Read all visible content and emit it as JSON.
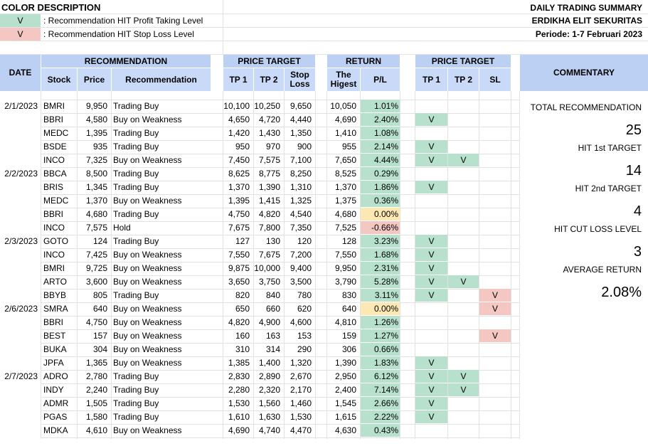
{
  "color_description": {
    "title": "COLOR DESCRIPTION",
    "items": [
      {
        "symbol": "V",
        "text": ": Recommendation HIT Profit Taking Level",
        "color": "#b7e1cd"
      },
      {
        "symbol": "V",
        "text": ": Recommendation HIT Stop Loss Level",
        "color": "#f4c7c3"
      }
    ]
  },
  "header": {
    "title": "DAILY TRADING SUMMARY",
    "company": "ERDIKHA ELIT SEKURITAS",
    "period": "Periode: 1-7  Februari 2023"
  },
  "columns": {
    "date": "DATE",
    "recommendation_group": "RECOMMENDATION",
    "stock": "Stock",
    "price": "Price",
    "recommendation": "Recommendation",
    "price_target_group": "PRICE TARGET",
    "tp1": "TP 1",
    "tp2": "TP 2",
    "stop_loss": "Stop Loss",
    "return_group": "RETURN",
    "highest": "The Higest",
    "pl": "P/L",
    "hit_group": "PRICE TARGET",
    "hit_tp1": "TP 1",
    "hit_tp2": "TP 2",
    "hit_sl": "SL",
    "commentary": "COMMENTARY"
  },
  "rows": [
    {
      "date": "2/1/2023",
      "stock": "BMRI",
      "price": "9,950",
      "rec": "Trading Buy",
      "tp1": "10,100",
      "tp2": "10,250",
      "sl": "9,650",
      "high": "10,050",
      "pl": "1.01%",
      "pl_state": "green",
      "h1": "",
      "h2": "",
      "hs": ""
    },
    {
      "date": "",
      "stock": "BBRI",
      "price": "4,580",
      "rec": "Buy on Weakness",
      "tp1": "4,650",
      "tp2": "4,720",
      "sl": "4,440",
      "high": "4,690",
      "pl": "2.40%",
      "pl_state": "green",
      "h1": "V",
      "h2": "",
      "hs": ""
    },
    {
      "date": "",
      "stock": "MEDC",
      "price": "1,395",
      "rec": "Trading Buy",
      "tp1": "1,420",
      "tp2": "1,430",
      "sl": "1,350",
      "high": "1,410",
      "pl": "1.08%",
      "pl_state": "green",
      "h1": "",
      "h2": "",
      "hs": ""
    },
    {
      "date": "",
      "stock": "BSDE",
      "price": "935",
      "rec": "Trading Buy",
      "tp1": "950",
      "tp2": "970",
      "sl": "900",
      "high": "955",
      "pl": "2.14%",
      "pl_state": "green",
      "h1": "V",
      "h2": "",
      "hs": ""
    },
    {
      "date": "",
      "stock": "INCO",
      "price": "7,325",
      "rec": "Buy on Weakness",
      "tp1": "7,450",
      "tp2": "7,575",
      "sl": "7,100",
      "high": "7,650",
      "pl": "4.44%",
      "pl_state": "green",
      "h1": "V",
      "h2": "V",
      "hs": ""
    },
    {
      "date": "2/2/2023",
      "stock": "BBCA",
      "price": "8,500",
      "rec": "Trading Buy",
      "tp1": "8,625",
      "tp2": "8,775",
      "sl": "8,250",
      "high": "8,525",
      "pl": "0.29%",
      "pl_state": "green",
      "h1": "",
      "h2": "",
      "hs": ""
    },
    {
      "date": "",
      "stock": "BRIS",
      "price": "1,345",
      "rec": "Trading Buy",
      "tp1": "1,370",
      "tp2": "1,390",
      "sl": "1,310",
      "high": "1,370",
      "pl": "1.86%",
      "pl_state": "green",
      "h1": "V",
      "h2": "",
      "hs": ""
    },
    {
      "date": "",
      "stock": "MEDC",
      "price": "1,370",
      "rec": "Buy on Weakness",
      "tp1": "1,395",
      "tp2": "1,415",
      "sl": "1,325",
      "high": "1,375",
      "pl": "0.36%",
      "pl_state": "green",
      "h1": "",
      "h2": "",
      "hs": ""
    },
    {
      "date": "",
      "stock": "BBRI",
      "price": "4,680",
      "rec": "Trading Buy",
      "tp1": "4,750",
      "tp2": "4,820",
      "sl": "4,540",
      "high": "4,680",
      "pl": "0.00%",
      "pl_state": "yellow",
      "h1": "",
      "h2": "",
      "hs": ""
    },
    {
      "date": "",
      "stock": "INCO",
      "price": "7,575",
      "rec": "Hold",
      "tp1": "7,675",
      "tp2": "7,800",
      "sl": "7,350",
      "high": "7,525",
      "pl": "-0.66%",
      "pl_state": "pink",
      "h1": "",
      "h2": "",
      "hs": ""
    },
    {
      "date": "2/3/2023",
      "stock": "GOTO",
      "price": "124",
      "rec": "Trading Buy",
      "tp1": "127",
      "tp2": "130",
      "sl": "120",
      "high": "128",
      "pl": "3.23%",
      "pl_state": "green",
      "h1": "V",
      "h2": "",
      "hs": ""
    },
    {
      "date": "",
      "stock": "INCO",
      "price": "7,425",
      "rec": "Buy on Weakness",
      "tp1": "7,550",
      "tp2": "7,675",
      "sl": "7,200",
      "high": "7,550",
      "pl": "1.68%",
      "pl_state": "green",
      "h1": "V",
      "h2": "",
      "hs": ""
    },
    {
      "date": "",
      "stock": "BMRI",
      "price": "9,725",
      "rec": "Buy on Weakness",
      "tp1": "9,875",
      "tp2": "10,000",
      "sl": "9,400",
      "high": "9,950",
      "pl": "2.31%",
      "pl_state": "green",
      "h1": "V",
      "h2": "",
      "hs": ""
    },
    {
      "date": "",
      "stock": "ARTO",
      "price": "3,600",
      "rec": "Buy on Weakness",
      "tp1": "3,650",
      "tp2": "3,750",
      "sl": "3,500",
      "high": "3,790",
      "pl": "5.28%",
      "pl_state": "green",
      "h1": "V",
      "h2": "V",
      "hs": ""
    },
    {
      "date": "",
      "stock": "BBYB",
      "price": "805",
      "rec": "Trading Buy",
      "tp1": "820",
      "tp2": "840",
      "sl": "780",
      "high": "830",
      "pl": "3.11%",
      "pl_state": "green",
      "h1": "V",
      "h2": "",
      "hs": "V"
    },
    {
      "date": "2/6/2023",
      "stock": "SMRA",
      "price": "640",
      "rec": "Buy on Weakness",
      "tp1": "650",
      "tp2": "660",
      "sl": "620",
      "high": "640",
      "pl": "0.00%",
      "pl_state": "yellow",
      "h1": "",
      "h2": "",
      "hs": "V"
    },
    {
      "date": "",
      "stock": "BBRI",
      "price": "4,750",
      "rec": "Buy on Weakness",
      "tp1": "4,820",
      "tp2": "4,900",
      "sl": "4,600",
      "high": "4,810",
      "pl": "1.26%",
      "pl_state": "green",
      "h1": "",
      "h2": "",
      "hs": ""
    },
    {
      "date": "",
      "stock": "BEST",
      "price": "157",
      "rec": "Buy on Weakness",
      "tp1": "160",
      "tp2": "163",
      "sl": "153",
      "high": "159",
      "pl": "1.27%",
      "pl_state": "green",
      "h1": "",
      "h2": "",
      "hs": "V"
    },
    {
      "date": "",
      "stock": "BUKA",
      "price": "304",
      "rec": "Buy on Weakness",
      "tp1": "310",
      "tp2": "314",
      "sl": "290",
      "high": "306",
      "pl": "0.66%",
      "pl_state": "green",
      "h1": "",
      "h2": "",
      "hs": ""
    },
    {
      "date": "",
      "stock": "JPFA",
      "price": "1,365",
      "rec": "Buy on Weakness",
      "tp1": "1,385",
      "tp2": "1,400",
      "sl": "1,320",
      "high": "1,390",
      "pl": "1.83%",
      "pl_state": "green",
      "h1": "V",
      "h2": "",
      "hs": ""
    },
    {
      "date": "2/7/2023",
      "stock": "ADRO",
      "price": "2,780",
      "rec": "Trading Buy",
      "tp1": "2,830",
      "tp2": "2,890",
      "sl": "2,670",
      "high": "2,950",
      "pl": "6.12%",
      "pl_state": "green",
      "h1": "V",
      "h2": "V",
      "hs": ""
    },
    {
      "date": "",
      "stock": "INDY",
      "price": "2,240",
      "rec": "Trading Buy",
      "tp1": "2,280",
      "tp2": "2,320",
      "sl": "2,170",
      "high": "2,400",
      "pl": "7.14%",
      "pl_state": "green",
      "h1": "V",
      "h2": "V",
      "hs": ""
    },
    {
      "date": "",
      "stock": "ADMR",
      "price": "1,505",
      "rec": "Trading Buy",
      "tp1": "1,530",
      "tp2": "1,560",
      "sl": "1,460",
      "high": "1,545",
      "pl": "2.66%",
      "pl_state": "green",
      "h1": "V",
      "h2": "",
      "hs": ""
    },
    {
      "date": "",
      "stock": "PGAS",
      "price": "1,580",
      "rec": "Trading Buy",
      "tp1": "1,610",
      "tp2": "1,630",
      "sl": "1,530",
      "high": "1,615",
      "pl": "2.22%",
      "pl_state": "green",
      "h1": "V",
      "h2": "",
      "hs": ""
    },
    {
      "date": "",
      "stock": "MDKA",
      "price": "4,610",
      "rec": "Buy on Weakness",
      "tp1": "4,690",
      "tp2": "4,740",
      "sl": "4,470",
      "high": "4,630",
      "pl": "0.43%",
      "pl_state": "green",
      "h1": "",
      "h2": "",
      "hs": ""
    }
  ],
  "commentary": {
    "total_label": "TOTAL RECOMMENDATION",
    "total_value": "25",
    "hit1_label": "HIT 1st TARGET",
    "hit1_value": "14",
    "hit2_label": "HIT 2nd TARGET",
    "hit2_value": "4",
    "cut_label": "HIT CUT LOSS LEVEL",
    "cut_value": "3",
    "avg_label": "AVERAGE RETURN",
    "avg_value": "2.08%"
  },
  "colors": {
    "header_fill": "#bcd0f3",
    "subheader_fill": "#c9daf8",
    "green": "#b7e1cd",
    "yellow": "#fce8b2",
    "pink": "#f4c7c3"
  }
}
